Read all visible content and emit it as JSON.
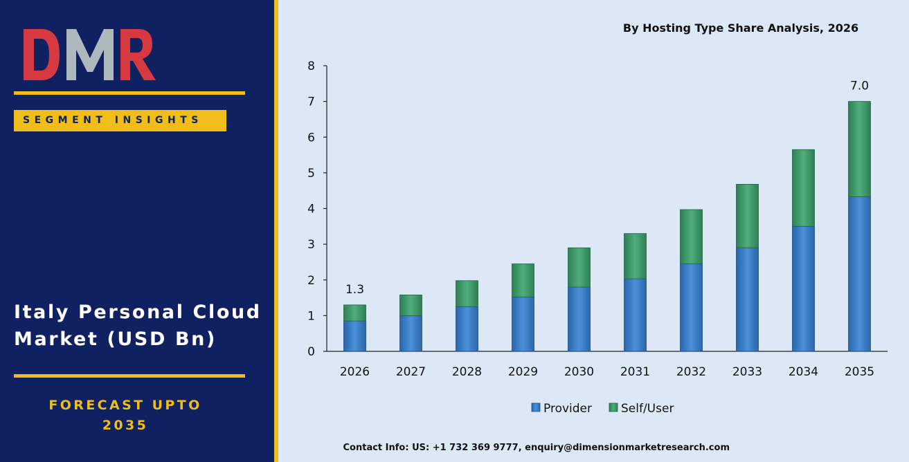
{
  "brand": {
    "logo_text": "DMR",
    "colors": {
      "navy": "#0f2160",
      "gold": "#f0bd1a",
      "logo_red": "#d6393f",
      "logo_grey": "#aeb9bd"
    }
  },
  "segment_label": "SEGMENT INSIGHTS",
  "market_title": {
    "line1": "Italy Personal Cloud",
    "line2": "Market (USD Bn)"
  },
  "forecast": {
    "line1": "FORECAST UPTO",
    "line2": "2035"
  },
  "contact": "Contact Info: US: +1 732 369 9777, enquiry@dimensionmarketresearch.com",
  "chart_data": {
    "type": "bar",
    "stacked": true,
    "title": "By Hosting Type Share Analysis, 2026",
    "categories": [
      "2026",
      "2027",
      "2028",
      "2029",
      "2030",
      "2031",
      "2032",
      "2033",
      "2034",
      "2035"
    ],
    "series": [
      {
        "name": "Provider",
        "color": "#3a7fca",
        "values": [
          0.85,
          1.0,
          1.25,
          1.52,
          1.8,
          2.03,
          2.45,
          2.9,
          3.5,
          4.33
        ]
      },
      {
        "name": "Self/User",
        "color": "#3f9b6a",
        "values": [
          0.45,
          0.58,
          0.73,
          0.93,
          1.1,
          1.27,
          1.52,
          1.78,
          2.15,
          2.67
        ]
      }
    ],
    "data_labels": [
      {
        "category": "2026",
        "text": "1.3"
      },
      {
        "category": "2035",
        "text": "7.0"
      }
    ],
    "y_ticks": [
      "0",
      "1",
      "2",
      "3",
      "4",
      "5",
      "6",
      "7",
      "8"
    ],
    "ylim": [
      0,
      8
    ],
    "grid": false,
    "legend_position": "bottom"
  }
}
